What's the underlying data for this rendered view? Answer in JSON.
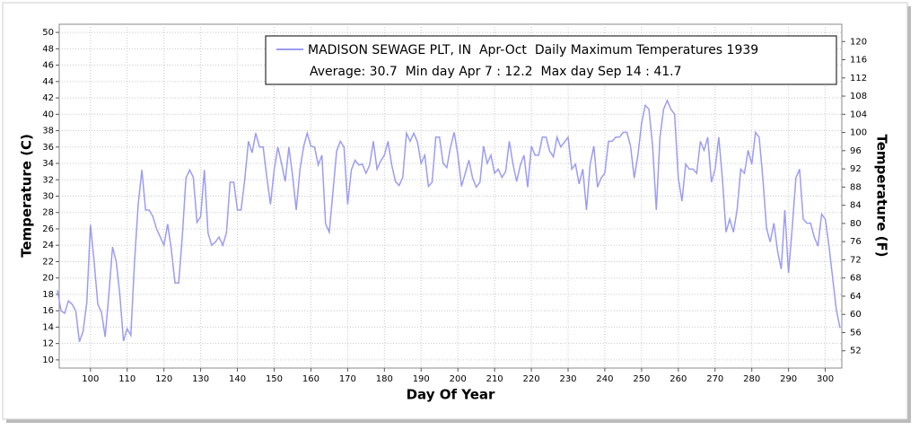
{
  "chart_data": {
    "type": "line",
    "series": [
      {
        "name": "MADISON SEWAGE PLT, IN  Apr-Oct  Daily Maximum Temperatures 1939",
        "color": "#9c9cf2",
        "values": [
          18.5,
          16,
          15.7,
          17.2,
          16.8,
          16,
          12.2,
          13.5,
          17,
          26.5,
          22,
          16.8,
          15.8,
          12.8,
          18,
          23.8,
          22,
          18,
          12.3,
          13.8,
          13,
          22,
          29,
          33.2,
          28.3,
          28.3,
          27.5,
          26,
          25,
          24,
          26.6,
          23.5,
          19.4,
          19.4,
          25,
          32.2,
          33.2,
          32.3,
          26.8,
          27.5,
          33.2,
          25.5,
          24,
          24.4,
          25,
          24,
          25.5,
          31.7,
          31.7,
          28.3,
          28.3,
          32,
          36.7,
          35.3,
          37.7,
          36,
          36,
          32.3,
          29,
          33.2,
          36,
          34,
          31.8,
          36,
          32.5,
          28.3,
          33.2,
          36,
          37.7,
          36.1,
          36,
          33.8,
          35,
          26.6,
          25.6,
          30.5,
          35.5,
          36.7,
          36,
          29,
          33.2,
          34.4,
          33.8,
          33.9,
          32.8,
          33.8,
          36.7,
          33.3,
          34.3,
          35,
          36.7,
          33.8,
          31.8,
          31.3,
          32.3,
          37.7,
          36.7,
          37.7,
          36.6,
          34,
          35,
          31.2,
          31.7,
          37.2,
          37.2,
          34,
          33.5,
          36,
          37.8,
          35,
          31.2,
          32.8,
          34.4,
          32.2,
          31.1,
          31.7,
          36.1,
          34,
          35,
          32.8,
          33.3,
          32.3,
          33,
          36.7,
          33.9,
          31.8,
          33.8,
          35,
          31.1,
          36.1,
          35,
          35,
          37.2,
          37.2,
          35.5,
          34.8,
          37.2,
          36,
          36.6,
          37.2,
          33.3,
          33.9,
          31.5,
          33.3,
          28.3,
          33.9,
          36.1,
          31.1,
          32.2,
          32.8,
          36.7,
          36.7,
          37.2,
          37.2,
          37.8,
          37.8,
          36.1,
          32.2,
          35,
          38.9,
          41.1,
          40.6,
          36.1,
          28.3,
          37.2,
          40.6,
          41.7,
          40.6,
          40,
          32.2,
          29.4,
          33.9,
          33.3,
          33.3,
          32.8,
          36.7,
          35.6,
          37.2,
          31.7,
          33.3,
          37.2,
          32.2,
          25.6,
          27.2,
          25.6,
          28.3,
          33.3,
          32.8,
          35.6,
          33.9,
          37.8,
          37.2,
          32.2,
          26.1,
          24.4,
          26.7,
          23.3,
          21.1,
          28.3,
          20.6,
          26.1,
          32.2,
          33.3,
          27.2,
          26.7,
          26.7,
          25,
          23.9,
          27.8,
          27.2,
          23.9,
          20,
          16.1,
          13.9
        ]
      }
    ],
    "x": [
      91,
      92,
      93,
      94,
      95,
      96,
      97,
      98,
      99,
      100,
      101,
      102,
      103,
      104,
      105,
      106,
      107,
      108,
      109,
      110,
      111,
      112,
      113,
      114,
      115,
      116,
      117,
      118,
      119,
      120,
      121,
      122,
      123,
      124,
      125,
      126,
      127,
      128,
      129,
      130,
      131,
      132,
      133,
      134,
      135,
      136,
      137,
      138,
      139,
      140,
      141,
      142,
      143,
      144,
      145,
      146,
      147,
      148,
      149,
      150,
      151,
      152,
      153,
      154,
      155,
      156,
      157,
      158,
      159,
      160,
      161,
      162,
      163,
      164,
      165,
      166,
      167,
      168,
      169,
      170,
      171,
      172,
      173,
      174,
      175,
      176,
      177,
      178,
      179,
      180,
      181,
      182,
      183,
      184,
      185,
      186,
      187,
      188,
      189,
      190,
      191,
      192,
      193,
      194,
      195,
      196,
      197,
      198,
      199,
      200,
      201,
      202,
      203,
      204,
      205,
      206,
      207,
      208,
      209,
      210,
      211,
      212,
      213,
      214,
      215,
      216,
      217,
      218,
      219,
      220,
      221,
      222,
      223,
      224,
      225,
      226,
      227,
      228,
      229,
      230,
      231,
      232,
      233,
      234,
      235,
      236,
      237,
      238,
      239,
      240,
      241,
      242,
      243,
      244,
      245,
      246,
      247,
      248,
      249,
      250,
      251,
      252,
      253,
      254,
      255,
      256,
      257,
      258,
      259,
      260,
      261,
      262,
      263,
      264,
      265,
      266,
      267,
      268,
      269,
      270,
      271,
      272,
      273,
      274,
      275,
      276,
      277,
      278,
      279,
      280,
      281,
      282,
      283,
      284,
      285,
      286,
      287,
      288,
      289,
      290,
      291,
      292,
      293,
      294,
      295,
      296,
      297,
      298,
      299,
      300,
      301,
      302,
      303,
      304
    ],
    "subtitle": "Average: 30.7  Min day Apr 7 : 12.2  Max day Sep 14 : 41.7",
    "xlabel": "Day Of Year",
    "ylabel": "Temperature (C)",
    "y2label": "Temperature (F)",
    "xlim": [
      91.5,
      304.5
    ],
    "xticks": [
      100,
      110,
      120,
      130,
      140,
      150,
      160,
      170,
      180,
      190,
      200,
      210,
      220,
      230,
      240,
      250,
      260,
      270,
      280,
      290,
      300
    ],
    "ylim": [
      9,
      51
    ],
    "yticks": [
      10,
      12,
      14,
      16,
      18,
      20,
      22,
      24,
      26,
      28,
      30,
      32,
      34,
      36,
      38,
      40,
      42,
      44,
      46,
      48,
      50
    ],
    "y2lim": [
      48.2,
      123.8
    ],
    "y2ticks": [
      52,
      56,
      60,
      64,
      68,
      72,
      76,
      80,
      84,
      88,
      92,
      96,
      100,
      104,
      108,
      112,
      116,
      120
    ],
    "grid": true
  }
}
